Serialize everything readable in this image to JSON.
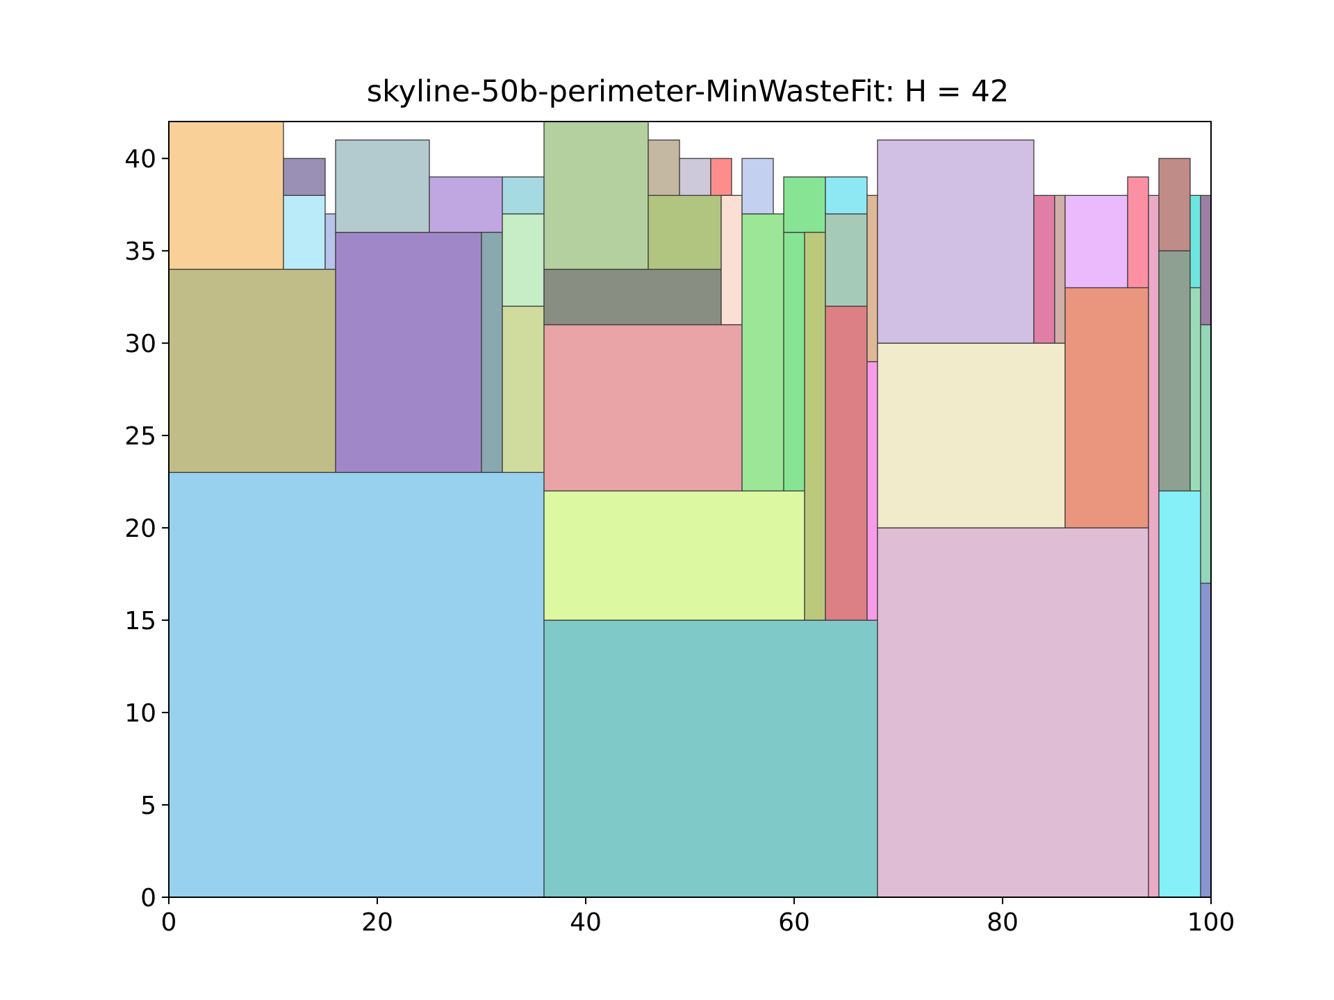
{
  "chart_data": {
    "type": "rectangles",
    "title": "skyline-50b-perimeter-MinWasteFit: H = 42",
    "xlabel": "",
    "ylabel": "",
    "xlim": [
      0,
      100
    ],
    "ylim": [
      0,
      42
    ],
    "xticks": [
      0,
      20,
      40,
      60,
      80,
      100
    ],
    "yticks": [
      0,
      5,
      10,
      15,
      20,
      25,
      30,
      35,
      40
    ],
    "grid": false,
    "rects": [
      {
        "x": 0,
        "y": 0,
        "w": 36,
        "h": 23,
        "color": "#97d1ee"
      },
      {
        "x": 0,
        "y": 23,
        "w": 16,
        "h": 11,
        "color": "#c0bd88"
      },
      {
        "x": 0,
        "y": 34,
        "w": 11,
        "h": 8,
        "color": "#f8d098"
      },
      {
        "x": 11,
        "y": 34,
        "w": 4,
        "h": 4,
        "color": "#baebf8"
      },
      {
        "x": 11,
        "y": 38,
        "w": 4,
        "h": 2,
        "color": "#9a8fb4"
      },
      {
        "x": 15,
        "y": 34,
        "w": 1,
        "h": 3,
        "color": "#b9c4ec"
      },
      {
        "x": 16,
        "y": 23,
        "w": 14,
        "h": 13,
        "color": "#a088c8"
      },
      {
        "x": 16,
        "y": 36,
        "w": 9,
        "h": 5,
        "color": "#b3cbce"
      },
      {
        "x": 25,
        "y": 36,
        "w": 7,
        "h": 3,
        "color": "#c1a7e2"
      },
      {
        "x": 30,
        "y": 23,
        "w": 2,
        "h": 13,
        "color": "#89a8b0"
      },
      {
        "x": 32,
        "y": 23,
        "w": 4,
        "h": 9,
        "color": "#d0dc9e"
      },
      {
        "x": 32,
        "y": 32,
        "w": 4,
        "h": 5,
        "color": "#c6edc6"
      },
      {
        "x": 32,
        "y": 37,
        "w": 4,
        "h": 2,
        "color": "#a6dae2"
      },
      {
        "x": 36,
        "y": 0,
        "w": 32,
        "h": 15,
        "color": "#80c9c9"
      },
      {
        "x": 36,
        "y": 15,
        "w": 25,
        "h": 7,
        "color": "#dcf9a2"
      },
      {
        "x": 36,
        "y": 22,
        "w": 19,
        "h": 9,
        "color": "#e8a4a6"
      },
      {
        "x": 36,
        "y": 31,
        "w": 17,
        "h": 3,
        "color": "#888e82"
      },
      {
        "x": 36,
        "y": 34,
        "w": 10,
        "h": 8,
        "color": "#b3d09e"
      },
      {
        "x": 46,
        "y": 34,
        "w": 7,
        "h": 4,
        "color": "#b2c580"
      },
      {
        "x": 46,
        "y": 38,
        "w": 3,
        "h": 3,
        "color": "#c5b8a2"
      },
      {
        "x": 49,
        "y": 38,
        "w": 3,
        "h": 2,
        "color": "#cdc8da"
      },
      {
        "x": 52,
        "y": 38,
        "w": 2,
        "h": 2,
        "color": "#fd8e8c"
      },
      {
        "x": 53,
        "y": 31,
        "w": 2,
        "h": 7,
        "color": "#fcdfd4"
      },
      {
        "x": 55,
        "y": 22,
        "w": 4,
        "h": 15,
        "color": "#9be697"
      },
      {
        "x": 55,
        "y": 37,
        "w": 3,
        "h": 3,
        "color": "#c4d0f0"
      },
      {
        "x": 59,
        "y": 22,
        "w": 2,
        "h": 14,
        "color": "#86e494"
      },
      {
        "x": 59,
        "y": 36,
        "w": 4,
        "h": 3,
        "color": "#86e494"
      },
      {
        "x": 61,
        "y": 15,
        "w": 2,
        "h": 21,
        "color": "#bac97c"
      },
      {
        "x": 63,
        "y": 15,
        "w": 4,
        "h": 17,
        "color": "#dc8086"
      },
      {
        "x": 63,
        "y": 32,
        "w": 4,
        "h": 5,
        "color": "#a6cab8"
      },
      {
        "x": 63,
        "y": 37,
        "w": 4,
        "h": 2,
        "color": "#8ee8f4"
      },
      {
        "x": 67,
        "y": 15,
        "w": 1,
        "h": 14,
        "color": "#f89be8"
      },
      {
        "x": 67,
        "y": 29,
        "w": 1,
        "h": 9,
        "color": "#deb897"
      },
      {
        "x": 68,
        "y": 0,
        "w": 26,
        "h": 20,
        "color": "#dfbed5"
      },
      {
        "x": 68,
        "y": 20,
        "w": 18,
        "h": 10,
        "color": "#f1eacb"
      },
      {
        "x": 68,
        "y": 30,
        "w": 15,
        "h": 11,
        "color": "#d2c0e4"
      },
      {
        "x": 83,
        "y": 30,
        "w": 2,
        "h": 8,
        "color": "#e07ea6"
      },
      {
        "x": 85,
        "y": 30,
        "w": 1,
        "h": 8,
        "color": "#d2afa8"
      },
      {
        "x": 86,
        "y": 20,
        "w": 8,
        "h": 13,
        "color": "#ea957e"
      },
      {
        "x": 86,
        "y": 33,
        "w": 6,
        "h": 5,
        "color": "#ebbafd"
      },
      {
        "x": 92,
        "y": 33,
        "w": 2,
        "h": 6,
        "color": "#fc90a2"
      },
      {
        "x": 94,
        "y": 0,
        "w": 1,
        "h": 38,
        "color": "#ebaac6"
      },
      {
        "x": 95,
        "y": 0,
        "w": 4,
        "h": 22,
        "color": "#86f0f8"
      },
      {
        "x": 95,
        "y": 22,
        "w": 3,
        "h": 13,
        "color": "#8ea092"
      },
      {
        "x": 95,
        "y": 35,
        "w": 3,
        "h": 5,
        "color": "#bf8c88"
      },
      {
        "x": 98,
        "y": 22,
        "w": 1,
        "h": 11,
        "color": "#9bdcb8"
      },
      {
        "x": 98,
        "y": 33,
        "w": 1,
        "h": 5,
        "color": "#6ee6e0"
      },
      {
        "x": 99,
        "y": 0,
        "w": 1,
        "h": 17,
        "color": "#8896d0"
      },
      {
        "x": 99,
        "y": 17,
        "w": 1,
        "h": 14,
        "color": "#93d6b8"
      },
      {
        "x": 99,
        "y": 31,
        "w": 1,
        "h": 7,
        "color": "#9c7fa4"
      }
    ]
  }
}
